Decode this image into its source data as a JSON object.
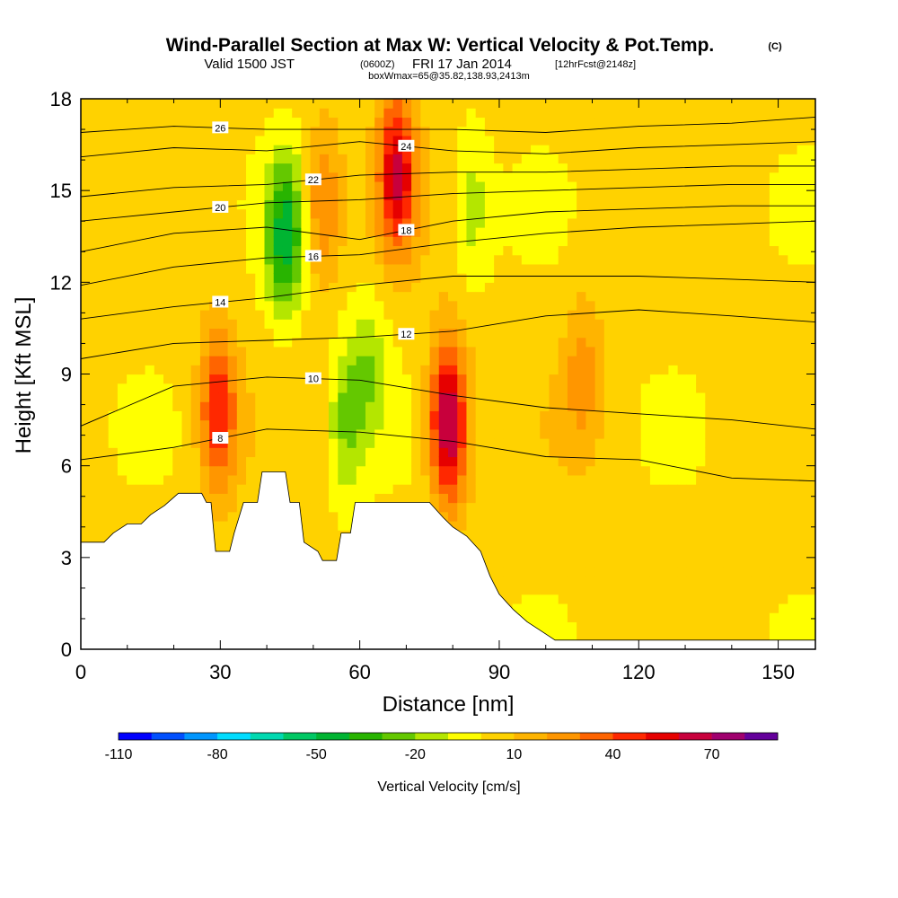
{
  "chart_data": {
    "type": "heatmap",
    "title": "Wind-Parallel Section at Max W: Vertical Velocity & Pot.Temp.",
    "title_tag": "(C)",
    "subtitle_valid": "Valid 1500 JST",
    "subtitle_utc": "(0600Z)",
    "subtitle_date": "FRI 17 Jan 2014",
    "subtitle_fcst": "[12hrFcst@2148z]",
    "subtitle_box": "boxWmax=65@35.82,138.93,2413m",
    "xlabel": "Distance [nm]",
    "ylabel": "Height [Kft MSL]",
    "xlim": [
      0,
      158
    ],
    "ylim": [
      0,
      18
    ],
    "x_ticks": [
      0,
      30,
      60,
      90,
      120,
      150
    ],
    "y_ticks": [
      0,
      3,
      6,
      9,
      12,
      15,
      18
    ],
    "colorbar": {
      "label": "Vertical Velocity [cm/s]",
      "tick_labels": [
        "-110",
        "-80",
        "-50",
        "-20",
        "10",
        "40",
        "70"
      ],
      "tick_values": [
        -110,
        -80,
        -50,
        -20,
        10,
        40,
        70
      ],
      "min": -110,
      "step": 10,
      "colors": [
        "#0000ff",
        "#0050ff",
        "#0096ff",
        "#00dcff",
        "#00d9b0",
        "#00c864",
        "#00b432",
        "#28b400",
        "#64c800",
        "#b4e600",
        "#ffff00",
        "#ffd200",
        "#ffb400",
        "#ff9600",
        "#ff6400",
        "#ff2800",
        "#e60000",
        "#c8003c",
        "#a0006e",
        "#64009b"
      ]
    },
    "terrain_kft": [
      [
        0,
        3.5
      ],
      [
        5,
        3.5
      ],
      [
        7,
        3.8
      ],
      [
        10,
        4.1
      ],
      [
        13,
        4.1
      ],
      [
        15,
        4.4
      ],
      [
        18,
        4.7
      ],
      [
        21,
        5.1
      ],
      [
        26,
        5.1
      ],
      [
        27,
        4.8
      ],
      [
        28,
        4.8
      ],
      [
        29,
        3.2
      ],
      [
        32,
        3.2
      ],
      [
        33,
        3.8
      ],
      [
        35,
        4.8
      ],
      [
        38,
        4.8
      ],
      [
        39,
        5.8
      ],
      [
        44,
        5.8
      ],
      [
        45,
        4.8
      ],
      [
        47,
        4.8
      ],
      [
        48,
        3.5
      ],
      [
        51,
        3.2
      ],
      [
        52,
        2.9
      ],
      [
        55,
        2.9
      ],
      [
        56,
        3.8
      ],
      [
        58,
        3.8
      ],
      [
        59,
        4.8
      ],
      [
        75,
        4.8
      ],
      [
        78,
        4.3
      ],
      [
        80,
        4.0
      ],
      [
        83,
        3.7
      ],
      [
        86,
        3.2
      ],
      [
        88,
        2.4
      ],
      [
        90,
        1.8
      ],
      [
        93,
        1.3
      ],
      [
        96,
        0.9
      ],
      [
        99,
        0.6
      ],
      [
        102,
        0.3
      ],
      [
        158,
        0.3
      ]
    ],
    "w_features": [
      {
        "x": 79,
        "z": 7.4,
        "w": 72
      },
      {
        "x": 68,
        "z": 15.6,
        "w": 55
      },
      {
        "x": 29.5,
        "z": 7.8,
        "w": 45
      },
      {
        "x": 44,
        "z": 13.5,
        "w": -48
      },
      {
        "x": 52,
        "z": 14.5,
        "w": 28
      },
      {
        "x": 57,
        "z": 7.5,
        "w": -25
      },
      {
        "x": 62,
        "z": 9.2,
        "w": -20
      },
      {
        "x": 84,
        "z": 14.5,
        "w": -18
      },
      {
        "x": 108,
        "z": 9.0,
        "w": 20
      }
    ],
    "theta_contours": [
      {
        "label": "8",
        "points": [
          [
            0,
            6.2
          ],
          [
            20,
            6.6
          ],
          [
            40,
            7.2
          ],
          [
            60,
            7.1
          ],
          [
            80,
            6.8
          ],
          [
            100,
            6.3
          ],
          [
            120,
            6.2
          ],
          [
            140,
            5.6
          ],
          [
            158,
            5.5
          ]
        ]
      },
      {
        "label": "10",
        "points": [
          [
            0,
            7.3
          ],
          [
            20,
            8.6
          ],
          [
            40,
            8.9
          ],
          [
            60,
            8.8
          ],
          [
            80,
            8.3
          ],
          [
            100,
            7.9
          ],
          [
            120,
            7.7
          ],
          [
            140,
            7.5
          ],
          [
            158,
            7.2
          ]
        ]
      },
      {
        "label": "12",
        "points": [
          [
            0,
            9.5
          ],
          [
            20,
            10.0
          ],
          [
            40,
            10.1
          ],
          [
            60,
            10.2
          ],
          [
            80,
            10.4
          ],
          [
            100,
            10.9
          ],
          [
            120,
            11.1
          ],
          [
            140,
            10.9
          ],
          [
            158,
            10.7
          ]
        ]
      },
      {
        "label": "14",
        "points": [
          [
            0,
            10.8
          ],
          [
            20,
            11.2
          ],
          [
            40,
            11.5
          ],
          [
            60,
            11.9
          ],
          [
            80,
            12.2
          ],
          [
            100,
            12.2
          ],
          [
            120,
            12.2
          ],
          [
            140,
            12.1
          ],
          [
            158,
            12.0
          ]
        ]
      },
      {
        "label": "16",
        "points": [
          [
            0,
            11.9
          ],
          [
            20,
            12.5
          ],
          [
            40,
            12.8
          ],
          [
            60,
            12.9
          ],
          [
            80,
            13.3
          ],
          [
            100,
            13.6
          ],
          [
            120,
            13.8
          ],
          [
            140,
            13.9
          ],
          [
            158,
            14.0
          ]
        ]
      },
      {
        "label": "18",
        "points": [
          [
            0,
            13.0
          ],
          [
            20,
            13.6
          ],
          [
            40,
            13.8
          ],
          [
            60,
            13.4
          ],
          [
            80,
            14.0
          ],
          [
            100,
            14.3
          ],
          [
            120,
            14.4
          ],
          [
            140,
            14.5
          ],
          [
            158,
            14.5
          ]
        ]
      },
      {
        "label": "20",
        "points": [
          [
            0,
            14.0
          ],
          [
            20,
            14.3
          ],
          [
            40,
            14.6
          ],
          [
            60,
            14.7
          ],
          [
            80,
            14.9
          ],
          [
            100,
            15.0
          ],
          [
            120,
            15.1
          ],
          [
            140,
            15.2
          ],
          [
            158,
            15.2
          ]
        ]
      },
      {
        "label": "22",
        "points": [
          [
            0,
            14.8
          ],
          [
            20,
            15.1
          ],
          [
            40,
            15.2
          ],
          [
            60,
            15.5
          ],
          [
            80,
            15.6
          ],
          [
            100,
            15.6
          ],
          [
            120,
            15.7
          ],
          [
            140,
            15.8
          ],
          [
            158,
            15.8
          ]
        ]
      },
      {
        "label": "24",
        "points": [
          [
            0,
            16.1
          ],
          [
            20,
            16.4
          ],
          [
            40,
            16.3
          ],
          [
            60,
            16.6
          ],
          [
            80,
            16.3
          ],
          [
            100,
            16.2
          ],
          [
            120,
            16.4
          ],
          [
            140,
            16.5
          ],
          [
            158,
            16.6
          ]
        ]
      },
      {
        "label": "26",
        "points": [
          [
            0,
            16.9
          ],
          [
            20,
            17.1
          ],
          [
            40,
            17.0
          ],
          [
            60,
            17.0
          ],
          [
            80,
            17.0
          ],
          [
            100,
            16.9
          ],
          [
            120,
            17.1
          ],
          [
            140,
            17.2
          ],
          [
            158,
            17.4
          ]
        ]
      }
    ]
  }
}
